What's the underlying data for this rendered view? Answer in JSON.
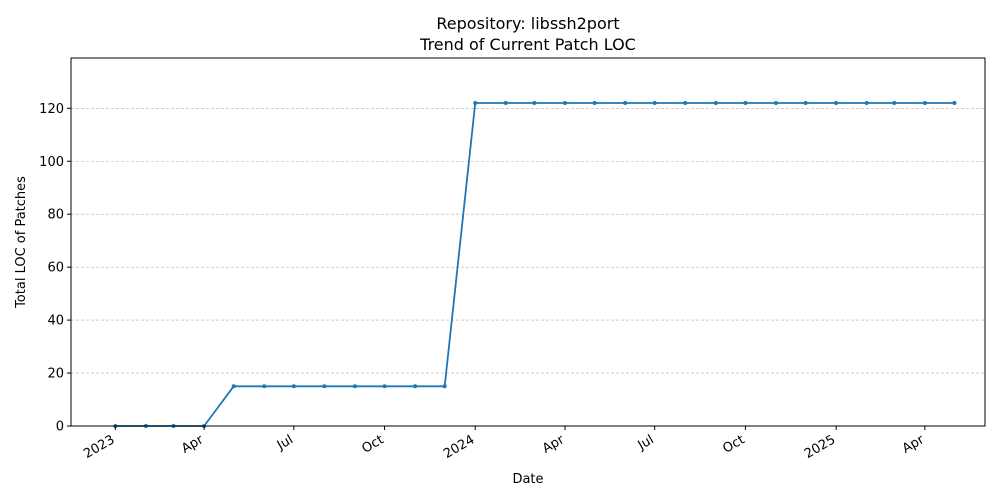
{
  "chart_data": {
    "type": "line",
    "title": "Repository: libssh2port",
    "subtitle": "Trend of Current Patch LOC",
    "xlabel": "Date",
    "ylabel": "Total LOC of Patches",
    "ylim": [
      0,
      139
    ],
    "yticks": [
      0,
      20,
      40,
      60,
      80,
      100,
      120
    ],
    "xticks": [
      {
        "date": "2023-01-01",
        "label": "2023"
      },
      {
        "date": "2023-04-01",
        "label": "Apr"
      },
      {
        "date": "2023-07-01",
        "label": "Jul"
      },
      {
        "date": "2023-10-01",
        "label": "Oct"
      },
      {
        "date": "2024-01-01",
        "label": "2024"
      },
      {
        "date": "2024-04-01",
        "label": "Apr"
      },
      {
        "date": "2024-07-01",
        "label": "Jul"
      },
      {
        "date": "2024-10-01",
        "label": "Oct"
      },
      {
        "date": "2025-01-01",
        "label": "2025"
      },
      {
        "date": "2025-04-01",
        "label": "Apr"
      }
    ],
    "xlim": [
      "2022-11-17",
      "2025-06-01"
    ],
    "grid": "y-dashed",
    "color": "#1f77b4",
    "series": [
      {
        "x": [
          "2023-01-01",
          "2023-02-01",
          "2023-03-01",
          "2023-04-01",
          "2023-05-01",
          "2023-06-01",
          "2023-07-01",
          "2023-08-01",
          "2023-09-01",
          "2023-10-01",
          "2023-11-01",
          "2023-12-01",
          "2024-01-01",
          "2024-02-01",
          "2024-03-01",
          "2024-04-01",
          "2024-05-01",
          "2024-06-01",
          "2024-07-01",
          "2024-08-01",
          "2024-09-01",
          "2024-10-01",
          "2024-11-01",
          "2024-12-01",
          "2025-01-01",
          "2025-02-01",
          "2025-03-01",
          "2025-04-01",
          "2025-05-01"
        ],
        "values": [
          0,
          0,
          0,
          0,
          15,
          15,
          15,
          15,
          15,
          15,
          15,
          15,
          122,
          122,
          122,
          122,
          122,
          122,
          122,
          122,
          122,
          122,
          122,
          122,
          122,
          122,
          122,
          122,
          122
        ]
      }
    ]
  }
}
